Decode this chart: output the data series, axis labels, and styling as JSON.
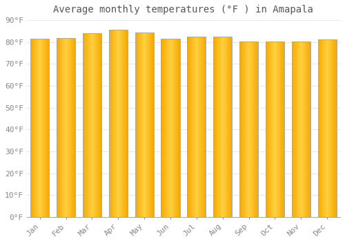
{
  "title": "Average monthly temperatures (°F ) in Amapala",
  "months": [
    "Jan",
    "Feb",
    "Mar",
    "Apr",
    "May",
    "Jun",
    "Jul",
    "Aug",
    "Sep",
    "Oct",
    "Nov",
    "Dec"
  ],
  "values": [
    81.5,
    81.7,
    84.0,
    85.5,
    84.2,
    81.5,
    82.5,
    82.3,
    80.2,
    80.1,
    80.2,
    81.2
  ],
  "ylim": [
    0,
    90
  ],
  "yticks": [
    0,
    10,
    20,
    30,
    40,
    50,
    60,
    70,
    80,
    90
  ],
  "bar_color_center": "#FFD040",
  "bar_color_edge": "#F5A800",
  "background_color": "#FFFFFF",
  "grid_color": "#E8E8E8",
  "title_fontsize": 10,
  "tick_fontsize": 8,
  "bar_width": 0.72
}
